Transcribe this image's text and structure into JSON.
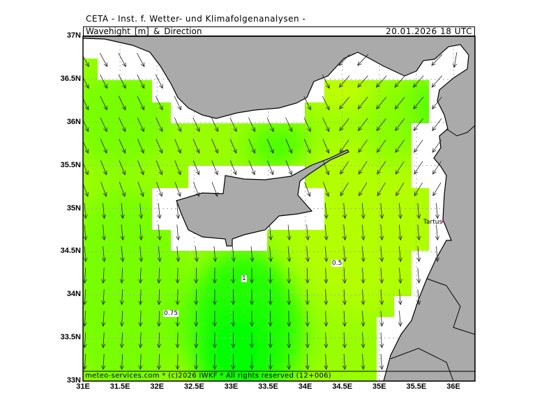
{
  "institute": "CETA - Inst. f. Wetter- und Klimafolgenanalysen -",
  "header": {
    "title": "Wavehight_[m]_&_Direction",
    "datetime": "20.01.2026 18 UTC"
  },
  "footer": "meteo-services.com * (c)2026 IWKF * All rights reserved (12+006)",
  "axes": {
    "lat_labels": [
      "37N",
      "36.5N",
      "36N",
      "35.5N",
      "35N",
      "34.5N",
      "34N",
      "33.5N",
      "33N"
    ],
    "lon_labels": [
      "31E",
      "31.5E",
      "32E",
      "32.5E",
      "33E",
      "33.5E",
      "34E",
      "34.5E",
      "35E",
      "35.5E",
      "36E"
    ],
    "lat_range": [
      33,
      37
    ],
    "lon_range": [
      31,
      36.3
    ]
  },
  "places": [
    {
      "name": "Tartus"
    }
  ],
  "contour_labels": [
    "0.5",
    "1",
    "0.75"
  ],
  "colors": {
    "land": "#aaaaaa",
    "nodata_sea": "#ffffff",
    "wave_low": "#b3ff00",
    "wave_mid": "#88ff00",
    "wave_high": "#00ff00",
    "grid": "#aaaaaa"
  }
}
